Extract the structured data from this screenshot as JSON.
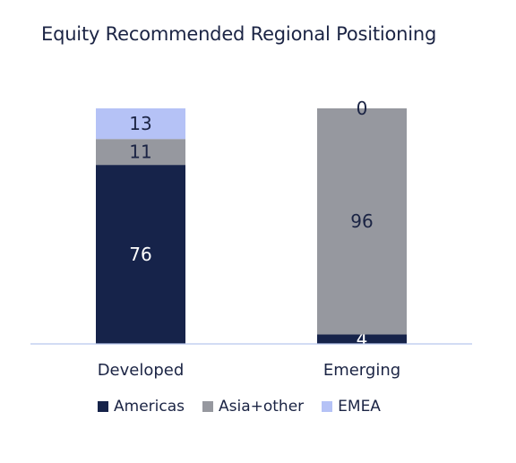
{
  "title": "Equity Recommended Regional Positioning",
  "chart_data": {
    "type": "bar",
    "stacked": true,
    "categories": [
      "Developed",
      "Emerging"
    ],
    "series": [
      {
        "name": "Americas",
        "values": [
          76,
          4
        ],
        "color": "#16234a"
      },
      {
        "name": "Asia+other",
        "values": [
          11,
          96
        ],
        "color": "#96989f"
      },
      {
        "name": "EMEA",
        "values": [
          13,
          0
        ],
        "color": "#b5c2f6"
      }
    ],
    "ylim": [
      0,
      100
    ],
    "grid": false,
    "legend_position": "bottom",
    "axis_color": "#b8c6ee"
  }
}
